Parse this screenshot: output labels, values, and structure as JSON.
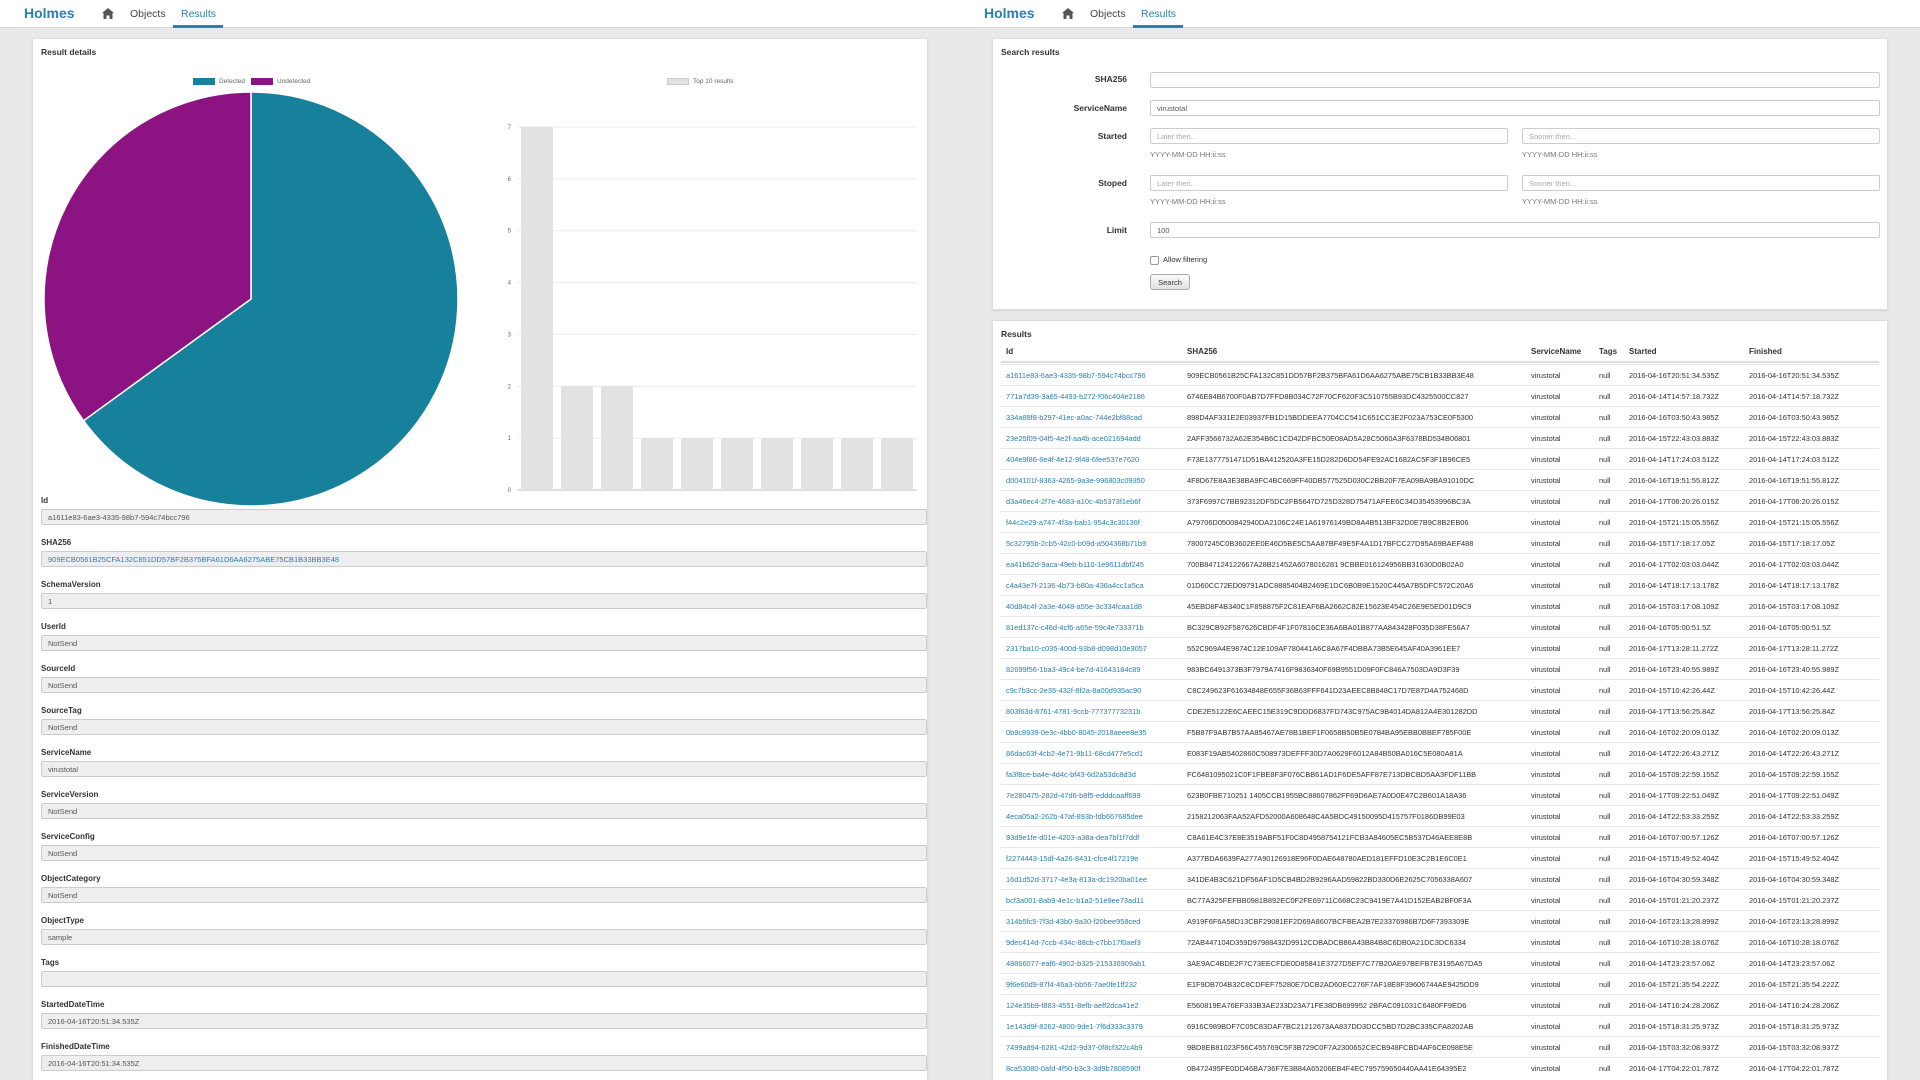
{
  "colors": {
    "brand": "#2a7fb3",
    "detected": "#17809b",
    "undetected": "#8b1482",
    "bar": "#e2e2e2"
  },
  "left": {
    "nav": {
      "brand": "Holmes",
      "home_icon": "home-icon",
      "objects": "Objects",
      "results": "Results",
      "active": "Results"
    },
    "panel_title": "Result details",
    "pie": {
      "legend": [
        "Detected",
        "Undetected"
      ],
      "chart_data": {
        "type": "pie",
        "labels": [
          "Detected",
          "Undetected"
        ],
        "values": [
          65,
          35
        ]
      }
    },
    "bar": {
      "legend": "Top 10 results",
      "chart_data": {
        "type": "bar",
        "categories": [
          "",
          "",
          "",
          "",
          "",
          "",
          "",
          "",
          "",
          ""
        ],
        "series": [
          {
            "name": "Top 10 results",
            "values": [
              7,
              2,
              2,
              1,
              1,
              1,
              1,
              1,
              1,
              1
            ]
          }
        ],
        "yticks": [
          "0",
          "1",
          "2",
          "3",
          "4",
          "5",
          "6",
          "7"
        ],
        "ylim": [
          0,
          7
        ],
        "grid": true,
        "legend_position": "top"
      }
    },
    "fields": [
      {
        "label": "Id",
        "value": "a1611e83-6ae3-4335-98b7-594c74bcc796",
        "link": false
      },
      {
        "label": "SHA256",
        "value": "909ECB0561B25CFA132C851DD57BF2B375BFA61D6AA6275ABE75CB1B33BB3E48",
        "link": true
      },
      {
        "label": "SchemaVersion",
        "value": "1",
        "link": false
      },
      {
        "label": "UserId",
        "value": "NotSend",
        "link": false
      },
      {
        "label": "SourceId",
        "value": "NotSend",
        "link": false
      },
      {
        "label": "SourceTag",
        "value": "NotSend",
        "link": false
      },
      {
        "label": "ServiceName",
        "value": "virustotal",
        "link": false
      },
      {
        "label": "ServiceVersion",
        "value": "NotSend",
        "link": false
      },
      {
        "label": "ServiceConfig",
        "value": "NotSend",
        "link": false
      },
      {
        "label": "ObjectCategory",
        "value": "NotSend",
        "link": false
      },
      {
        "label": "ObjectType",
        "value": "sample",
        "link": false
      },
      {
        "label": "Tags",
        "value": "",
        "link": false
      },
      {
        "label": "StartedDateTime",
        "value": "2016-04-16T20:51:34.535Z",
        "link": false
      },
      {
        "label": "FinishedDateTime",
        "value": "2016-04-16T20:51:34.535Z",
        "link": false
      }
    ]
  },
  "right": {
    "nav": {
      "brand": "Holmes",
      "home_icon": "home-icon",
      "objects": "Objects",
      "results": "Results",
      "active": "Results"
    },
    "search": {
      "title": "Search results",
      "sha256_label": "SHA256",
      "sha256_value": "",
      "service_label": "ServiceName",
      "service_value": "virustotal",
      "started_label": "Started",
      "stoped_label": "Stoped",
      "later_placeholder": "Later then...",
      "sooner_placeholder": "Sooner then...",
      "date_help": "YYYY-MM-DD HH:ii:ss",
      "limit_label": "Limit",
      "limit_value": "100",
      "allow_filtering": "Allow filtering",
      "search_button": "Search"
    },
    "results": {
      "title": "Results",
      "columns": [
        "Id",
        "SHA256",
        "ServiceName",
        "Tags",
        "Started",
        "Finished"
      ],
      "rows": [
        [
          "a1611e83-6ae3-4335-98b7-594c74bcc796",
          "909ECB0561B25CFA132C851DD57BF2B375BFA61D6AA6275ABE75CB1B33BB3E48",
          "virustotal",
          "null",
          "2016-04-16T20:51:34.535Z",
          "2016-04-16T20:51:34.535Z"
        ],
        [
          "771a7d39-3a65-4493-b272-f06c404e2186",
          "6746E84B6700F0AB7D7FFD8B034C72F70CF620F3C510755B93DC4325500CC827",
          "virustotal",
          "null",
          "2016-04-14T14:57:18.732Z",
          "2016-04-14T14:57:18.732Z"
        ],
        [
          "334a88f8-b297-41ec-a0ac-744e2bf88cad",
          "898D4AF331E2E03937FB1D15BDDEEA7704CC541C651CC3E2F023A753CE0F5300",
          "virustotal",
          "null",
          "2016-04-16T03:50:43.985Z",
          "2016-04-16T03:50:43.985Z"
        ],
        [
          "23e25f09-04f5-4e2f-aa4b-ace021694add",
          "2AFF3566732A62E354B6C1CD42DFBC50E08AD5A28C5060A3F6378BD534B06801",
          "virustotal",
          "null",
          "2016-04-15T22:43:03.883Z",
          "2016-04-15T22:43:03.883Z"
        ],
        [
          "404e9f86-8e4f-4e12-9f48-6fee537e7620",
          "F73E1377751471D51BA412520A3FE15D282D6DD54FE92AC1682AC5F3F1B96CE5",
          "virustotal",
          "null",
          "2016-04-14T17:24:03.512Z",
          "2016-04-14T17:24:03.512Z"
        ],
        [
          "d004101f-8363-4265-9a3e-996803c09350",
          "4F8D67E8A3E38BA9FC4BC669FF40DB577525D030C2BB20F7EA09BA9BA91010DC",
          "virustotal",
          "null",
          "2016-04-16T19:51:55.812Z",
          "2016-04-16T19:51:55.812Z"
        ],
        [
          "d3a46ec4-2f7e-4683-a10c-4b5373f1eb6f",
          "373F6997C7BB92312DF5DC2FB5647D725D328D75471AFEE6C34D35453996BC3A",
          "virustotal",
          "null",
          "2016-04-17T06:20:26.015Z",
          "2016-04-17T06:20:26.015Z"
        ],
        [
          "f44c2e29-a747-4f3a-bab1-954c3c30136f",
          "A79706D0500842940DA2106C24E1A61976149BD8A4B513BF32D0E7B9C8B2EB06",
          "virustotal",
          "null",
          "2016-04-15T21:15:05.556Z",
          "2016-04-15T21:15:05.556Z"
        ],
        [
          "5c32795b-2cb5-42c0-b09d-a504368b71b9",
          "78007245C0B3602EE0E46D5BE5C5AA87BF49E5F4A1D17BFCC27D95A69BAEF488",
          "virustotal",
          "null",
          "2016-04-15T17:18:17.05Z",
          "2016-04-15T17:18:17.05Z"
        ],
        [
          "ea41b62d-9aca-49eb-b110-1e9611dbf245",
          "700B847124122667A28B21452A6078016281 9CBBE016124956BB31630D0B02A0",
          "virustotal",
          "null",
          "2016-04-17T02:03:03.044Z",
          "2016-04-17T02:03:03.044Z"
        ],
        [
          "c4a43e7f-2136-4b73-b80a-436a4cc1a5ca",
          "01D60CC72ED09791ADC8885404B2469E1DC6B0B9E1520C445A7B5DFC572C20A6",
          "virustotal",
          "null",
          "2016-04-14T18:17:13.178Z",
          "2016-04-14T18:17:13.178Z"
        ],
        [
          "40d84c4f-2a3e-4048-a55e-3c334fcaa1d8",
          "45EBD8F4B340C1F858875F2C81EAF6BA2662C82E15623E454C26E9E5ED01D9C9",
          "virustotal",
          "null",
          "2016-04-15T03:17:08.109Z",
          "2016-04-15T03:17:08.109Z"
        ],
        [
          "81ed137c-c46d-4cf6-a65e-59c4e733371b",
          "BC329CB92F587626CBDF4F1F07816CE36A6BA01B877AA843428F035D38FE56A7",
          "virustotal",
          "null",
          "2016-04-16T05:00:51.5Z",
          "2016-04-16T05:00:51.5Z"
        ],
        [
          "2317ba10-c035-400d-93b8-d098d10e3057",
          "552C969A4E9874C12E109AF780441A6C8A67F4DBBA73B5E645AF40A3961EE7",
          "virustotal",
          "null",
          "2016-04-17T13:28:11.272Z",
          "2016-04-17T13:28:11.272Z"
        ],
        [
          "82699f56-1ba3-49c4-be7d-41643184c89",
          "983BC6491373B3F7979A7416F9836340F69B9551D09F0FC846A7503DA9D3F39",
          "virustotal",
          "null",
          "2016-04-16T23:40:55.989Z",
          "2016-04-16T23:40:55.989Z"
        ],
        [
          "c9c7b3cc-2e35-432f-8f2a-8a00d935ac90",
          "C8C249623F61634848E655F36B63FFF641D23AEEC8B848C17D7E87D4A752468D",
          "virustotal",
          "null",
          "2016-04-15T10:42:26.44Z",
          "2016-04-15T10:42:26.44Z"
        ],
        [
          "803f63d-8761-4781-9ccb-77737773231b",
          "CDE2E5122E6CAEEC15E319C9DDD6837FD743C975AC9B4014DA812A4E301282DD",
          "virustotal",
          "null",
          "2016-04-17T13:56:25.84Z",
          "2016-04-17T13:56:25.84Z"
        ],
        [
          "0b9c8939-0e3c-4bb0-8045-2018aeee8e35",
          "F5B87F9AB7B57AA85467AE78B1BEF1F0658B50B5E0784BA95EBB0BBEF785F00E",
          "virustotal",
          "null",
          "2016-04-16T02:20:09.013Z",
          "2016-04-16T02:20:09.013Z"
        ],
        [
          "86dac63f-4cb2-4e71-9b11-68cd477e5cd1",
          "E083F19AB5402860C508973DEFFF30D7A0629F6012A84B50BA016C5E080A81A",
          "virustotal",
          "null",
          "2016-04-14T22:26:43.271Z",
          "2016-04-14T22:26:43.271Z"
        ],
        [
          "fa3f8ce-ba4e-4d4c-bf43-6d2a53dc8d3d",
          "FC6481095021C0F1FBE8F3F076CBB61AD1F6DE5AFF87E713DBCBD5AA3FDF11BB",
          "virustotal",
          "null",
          "2016-04-15T09:22:59.155Z",
          "2016-04-15T09:22:59.155Z"
        ],
        [
          "7e280475-282d-47d6-b8f5-edddcaaff699",
          "623B0FBE710251 1405CCB1955BC88607862FF69D6AE7A0D0E47C2B601A18A36",
          "virustotal",
          "null",
          "2016-04-17T09:22:51.049Z",
          "2016-04-17T09:22:51.049Z"
        ],
        [
          "4eca05a2-262b-47af-893b-fdb667685dee",
          "2158212063FAA52AFD52000A608648C4A5BDC49150095D415757F0186DB99E03",
          "virustotal",
          "null",
          "2016-04-14T22:53:33.259Z",
          "2016-04-14T22:53:33.259Z"
        ],
        [
          "93d9e1fe-d01e-4203-a38a-dea7bf1f7ddf",
          "C8A61E4C37E8E3519ABF51F0C8D4958754121FCB3A84605EC5B537D46AEE8E8B",
          "virustotal",
          "null",
          "2016-04-16T07:00:57.126Z",
          "2016-04-16T07:00:57.126Z"
        ],
        [
          "f2274443-15df-4a26-8431-cfce4f17219e",
          "A377BDA6639FA277A90126918E96F0DAE648780AED181EFFD10E3C2B1E6C0E1",
          "virustotal",
          "null",
          "2016-04-15T15:49:52.404Z",
          "2016-04-15T15:49:52.404Z"
        ],
        [
          "16d1d52d-3717-4e3a-813a-dc1920ba01ee",
          "341DE4B3C621DF56AF1D5CB4BD2B9296AAD59822BD330D6E2625C7056338A607",
          "virustotal",
          "null",
          "2016-04-16T04:30:59.348Z",
          "2016-04-16T04:30:59.348Z"
        ],
        [
          "bcf3a001-8ab9-4e1c-b1a2-51e9ee73ad11",
          "BC77A325FEFBB0981B892EC0F2FE69711C668C23C9419E7A41D152EAB2BF0F3A",
          "virustotal",
          "null",
          "2016-04-15T01:21:20.237Z",
          "2016-04-15T01:21:20.237Z"
        ],
        [
          "314b5fc5-7f3d-43b0-9a30-f20bee958ced",
          "A919F6F6A58D13CBF29081EF2D69A8607BCFBEA2B7E23376986B7D6F7393309E",
          "virustotal",
          "null",
          "2016-04-16T23:13:28.899Z",
          "2016-04-16T23:13:28.899Z"
        ],
        [
          "9dec414d-7ccb-434c-88cb-c7bb17f0aef3",
          "72AB447104D359D97988432D9912CDBADCB86A43B84B8C6DB0A21DC3DC6334",
          "virustotal",
          "null",
          "2016-04-16T10:28:18.076Z",
          "2016-04-16T10:28:18.076Z"
        ],
        [
          "48866077-eaf6-4902-b325-215336909ab1",
          "3AE9AC4BDE2F7C73EECFDE0D85841E3727D5EF7C77B20AE97BEFB7E3195A67DA5",
          "virustotal",
          "null",
          "2016-04-14T23:23:57.06Z",
          "2016-04-14T23:23:57.06Z"
        ],
        [
          "9f6e60d9-87f4-46a3-bb56-7ae0fe1ff232",
          "E1F9DB704B32C8CDFEF75280E7DCB2AD60EC276F7AF18E8F39606744AE9425DD9",
          "virustotal",
          "null",
          "2016-04-15T21:35:54.222Z",
          "2016-04-15T21:35:54.222Z"
        ],
        [
          "124e35b9-f883-4551-8efb-aeff2dca41e2",
          "E560819EA76EF333B3AE233D23A71FE38DB699952 2BFAC091031C6480FF9ED6",
          "virustotal",
          "null",
          "2016-04-14T16:24:28.206Z",
          "2016-04-14T16:24:28.206Z"
        ],
        [
          "1e143d9f-8262-4800-9de1-7f6d333c3379",
          "6916C989BDF7C05C83DAF7BC21212673AA837DD3DCC5BD7D2BC335CFA8202AB",
          "virustotal",
          "null",
          "2016-04-15T18:31:25.973Z",
          "2016-04-15T18:31:25.973Z"
        ],
        [
          "7499a894-6281-42d2-9d37-0f8cf322c4b9",
          "9BD8EB81023F56C455769C5F3B729C0F7A2300652CECB948FCBD4AF6CE098E5E",
          "virustotal",
          "null",
          "2016-04-15T03:32:08.937Z",
          "2016-04-15T03:32:08.937Z"
        ],
        [
          "8ca53080-0afd-4f50-b3c3-3d9b7808590f",
          "0B472495FE0DD46BA736F7E3B84A65206EB4F4EC795759650440AA41E64395E2",
          "virustotal",
          "null",
          "2016-04-17T04:22:01.787Z",
          "2016-04-17T04:22:01.787Z"
        ]
      ]
    }
  }
}
